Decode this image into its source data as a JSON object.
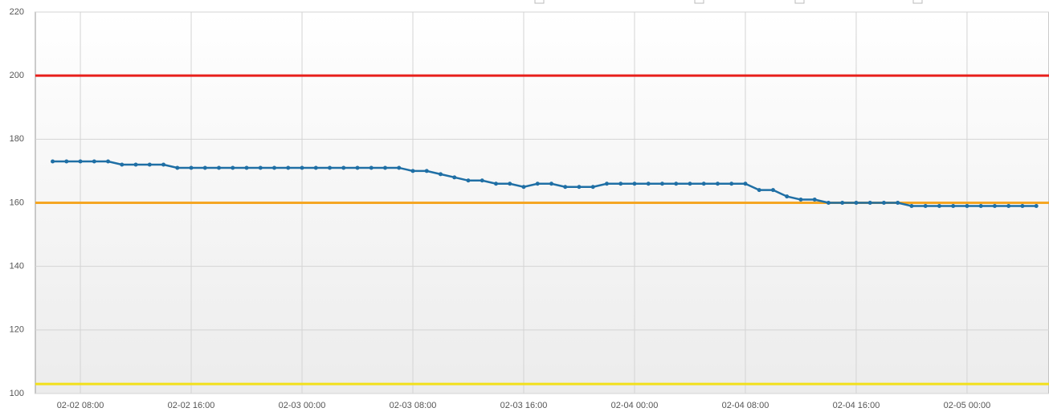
{
  "chart_data": {
    "type": "line",
    "x": [
      "02-02 06:00",
      "02-02 07:00",
      "02-02 08:00",
      "02-02 09:00",
      "02-02 10:00",
      "02-02 11:00",
      "02-02 12:00",
      "02-02 13:00",
      "02-02 14:00",
      "02-02 15:00",
      "02-02 16:00",
      "02-02 17:00",
      "02-02 18:00",
      "02-02 19:00",
      "02-02 20:00",
      "02-02 21:00",
      "02-02 22:00",
      "02-02 23:00",
      "02-03 00:00",
      "02-03 01:00",
      "02-03 02:00",
      "02-03 03:00",
      "02-03 04:00",
      "02-03 05:00",
      "02-03 06:00",
      "02-03 07:00",
      "02-03 08:00",
      "02-03 09:00",
      "02-03 10:00",
      "02-03 11:00",
      "02-03 12:00",
      "02-03 13:00",
      "02-03 14:00",
      "02-03 15:00",
      "02-03 16:00",
      "02-03 17:00",
      "02-03 18:00",
      "02-03 19:00",
      "02-03 20:00",
      "02-03 21:00",
      "02-03 22:00",
      "02-03 23:00",
      "02-04 00:00",
      "02-04 01:00",
      "02-04 02:00",
      "02-04 03:00",
      "02-04 04:00",
      "02-04 05:00",
      "02-04 06:00",
      "02-04 07:00",
      "02-04 08:00",
      "02-04 09:00",
      "02-04 10:00",
      "02-04 11:00",
      "02-04 12:00",
      "02-04 13:00",
      "02-04 14:00",
      "02-04 15:00",
      "02-04 16:00",
      "02-04 17:00",
      "02-04 18:00",
      "02-04 19:00",
      "02-04 20:00",
      "02-04 21:00",
      "02-04 22:00",
      "02-04 23:00",
      "02-05 00:00",
      "02-05 01:00",
      "02-05 02:00",
      "02-05 03:00",
      "02-05 04:00",
      "02-05 05:00"
    ],
    "series": [
      {
        "color": "#1f6fa5",
        "values": [
          173,
          173,
          173,
          173,
          173,
          172,
          172,
          172,
          172,
          171,
          171,
          171,
          171,
          171,
          171,
          171,
          171,
          171,
          171,
          171,
          171,
          171,
          171,
          171,
          171,
          171,
          170,
          170,
          169,
          168,
          167,
          167,
          166,
          166,
          165,
          166,
          166,
          165,
          165,
          165,
          166,
          166,
          166,
          166,
          166,
          166,
          166,
          166,
          166,
          166,
          166,
          164,
          164,
          162,
          161,
          161,
          160,
          160,
          160,
          160,
          160,
          160,
          159,
          159,
          159,
          159,
          159,
          159,
          159,
          159,
          159,
          159
        ]
      }
    ],
    "reference_lines": [
      {
        "value": 200,
        "color": "#e8201c"
      },
      {
        "value": 160,
        "color": "#f5a623"
      },
      {
        "value": 103,
        "color": "#f2e01a"
      }
    ],
    "xlim": [
      "02-02 04:45",
      "02-05 05:55"
    ],
    "xticks": [
      "02-02 08:00",
      "02-02 16:00",
      "02-03 00:00",
      "02-03 08:00",
      "02-03 16:00",
      "02-04 00:00",
      "02-04 08:00",
      "02-04 16:00",
      "02-05 00:00"
    ],
    "ylim": [
      100,
      220
    ],
    "yticks": [
      100,
      120,
      140,
      160,
      180,
      200,
      220
    ],
    "grid": true
  }
}
